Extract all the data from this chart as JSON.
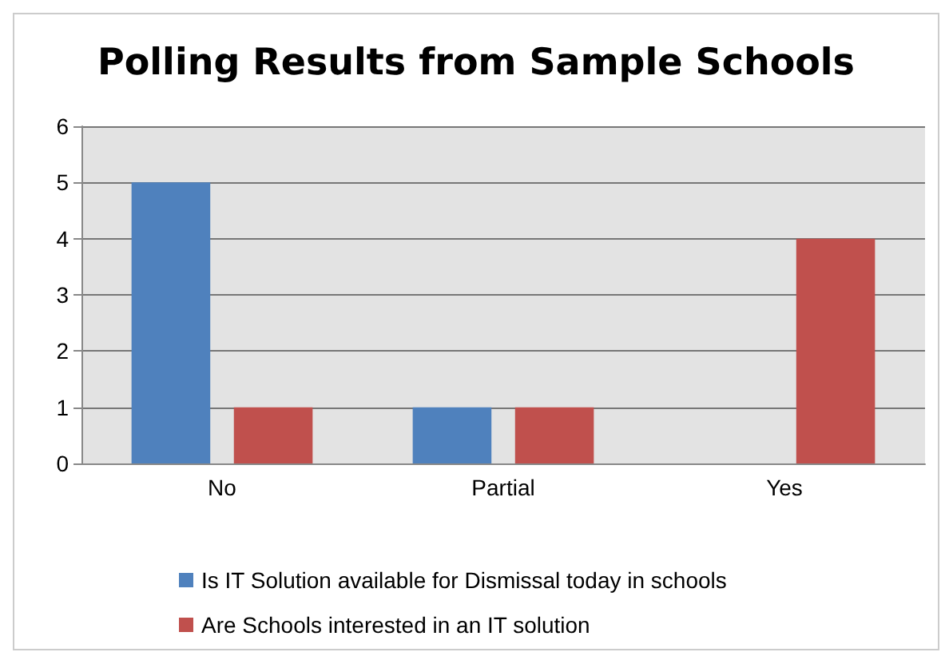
{
  "chart_data": {
    "type": "bar",
    "title": "Polling Results from Sample Schools",
    "categories": [
      "No",
      "Partial",
      "Yes"
    ],
    "series": [
      {
        "name": "Is IT Solution available for Dismissal today in schools",
        "color": "#4f81bd",
        "values": [
          5,
          1,
          0
        ]
      },
      {
        "name": "Are Schools interested in an IT solution",
        "color": "#c0504d",
        "values": [
          1,
          1,
          4
        ]
      }
    ],
    "ylim": [
      0,
      6
    ],
    "yticks": [
      0,
      1,
      2,
      3,
      4,
      5,
      6
    ],
    "grid": "y",
    "legend": "bottom"
  }
}
